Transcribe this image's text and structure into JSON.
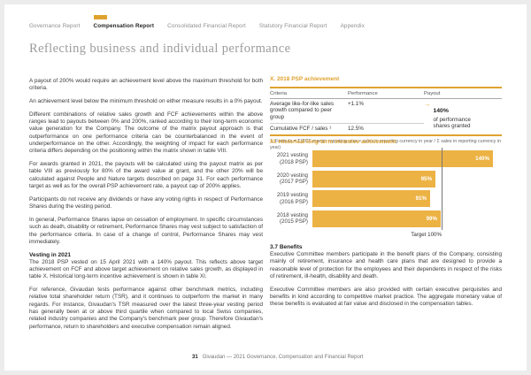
{
  "colors": {
    "accent": "#dfa230",
    "bar": "#ecb244",
    "target_line": "#777777"
  },
  "nav": {
    "items": [
      {
        "label": "Governance Report",
        "active": false
      },
      {
        "label": "Compensation Report",
        "active": true
      },
      {
        "label": "Consolidated Financial Report",
        "active": false
      },
      {
        "label": "Statutory Financial Report",
        "active": false
      },
      {
        "label": "Appendix",
        "active": false
      }
    ]
  },
  "page_title": "Reflecting business and individual performance",
  "left_column": {
    "paragraphs": [
      "A payout of 200% would require an achievement level above the maximum threshold for both criteria.",
      "An achievement level below the minimum threshold on either measure results in a 0% payout.",
      "Different combinations of relative sales growth and FCF achievements within the above ranges lead to payouts between 0% and 200%, ranked according to their long-term economic value generation for the Company. The outcome of the matrix payout approach is that outperformance on one performance criteria can be counterbalanced in the event of underperformance on the other. Accordingly, the weighting of impact for each performance criteria differs depending on the positioning within the matrix shown in table VIII.",
      "For awards granted in 2021, the payouts will be calculated using the payout matrix as per table VIII as previously for 80% of the award value at grant, and the other 20% will be calculated against People and Nature targets described on page 31. For each performance target as well as for the overall PSP achievement rate, a payout cap of 200% applies.",
      "Participants do not receive any dividends or have any voting rights in respect of Performance Shares during the vesting period.",
      "In general, Performance Shares lapse on cessation of employment. In specific circumstances such as death, disability or retirement, Performance Shares may vest subject to satisfaction of the performance criteria. In case of a change of control, Performance Shares may vest immediately."
    ],
    "vesting_heading": "Vesting in 2021",
    "vesting_paragraphs": [
      "The 2018 PSP vested on 15 April 2021 with a 140% payout. This reflects above target achievement on FCF and above target achievement on relative sales growth, as displayed in table X. Historical long-term incentive achievement is shown in table XI.",
      "For reference, Givaudan tests performance against other benchmark metrics, including relative total shareholder return (TSR), and it continues to outperform the market in many regards. For instance, Givaudan's TSR measured over the latest three-year vesting period has generally been at or above third quartile when compared to local Swiss companies, related industry companies and the Company's benchmark peer group. Therefore Givaudan's performance, return to shareholders and executive compensation remain aligned."
    ]
  },
  "right_column": {
    "table": {
      "title": "X. 2018 PSP achievement",
      "columns": [
        "Criteria",
        "Performance",
        "Payout"
      ],
      "rows": [
        {
          "criteria": "Average like-for-like sales growth compared to peer group",
          "performance": "+1.1%"
        },
        {
          "criteria": "Cumulative FCF / sales ¹",
          "performance": "12.5%"
        }
      ],
      "payout": {
        "arrow": "→",
        "value": "140%",
        "caption": "of performance shares granted"
      },
      "footnote": "1. Formula = Σ(FCF margin reporting year × sales in reporting currency in year / Σ sales in reporting currency in year)"
    },
    "benefits": {
      "heading": "3.7 Benefits",
      "paragraphs": [
        "Executive Committee members participate in the benefit plans of the Company, consisting mainly of retirement, insurance and health care plans that are designed to provide a reasonable level of protection for the employees and their dependents in respect of the risks of retirement, ill-health, disability and death.",
        "Executive Committee members are also provided with certain executive perquisites and benefits in kind according to competitive market practice. The aggregate monetary value of these benefits is evaluated at fair value and disclosed in the compensation tables."
      ]
    }
  },
  "chart_data": {
    "type": "bar",
    "orientation": "horizontal",
    "title": "XI. Historical long-term incentive achievement",
    "categories": [
      [
        "2021 vesting",
        "(2018 PSP)"
      ],
      [
        "2020 vesting",
        "(2017 PSP)"
      ],
      [
        "2019 vesting",
        "(2016 PSP)"
      ],
      [
        "2018 vesting",
        "(2015 PSP)"
      ]
    ],
    "values": [
      140,
      95,
      91,
      99
    ],
    "labels": [
      "140%",
      "95%",
      "91%",
      "99%"
    ],
    "xlabel": "",
    "ylabel": "",
    "xlim": [
      0,
      145
    ],
    "grid": false,
    "legend": false,
    "bar_color": "#ecb244",
    "value_label_position": "inside-right",
    "target_line": {
      "value": 100,
      "label": "Target 100%"
    }
  },
  "footer": {
    "page_number": "31",
    "text": "Givaudan — 2021 Governance, Compensation and Financial Report"
  }
}
